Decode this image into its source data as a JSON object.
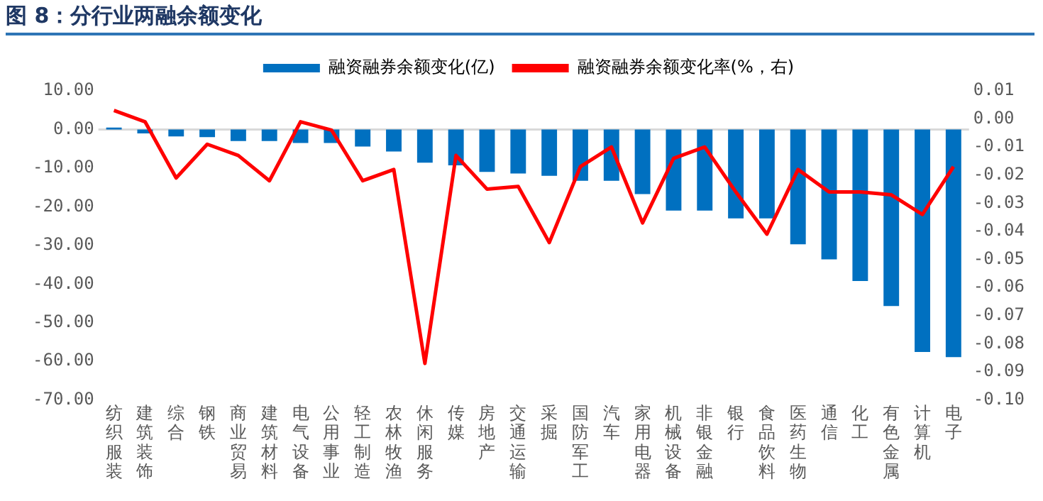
{
  "chart_data": {
    "type": "bar",
    "title": "图 8：分行业两融余额变化",
    "categories": [
      "纺织服装",
      "建筑装饰",
      "综合",
      "钢铁",
      "商业贸易",
      "建筑材料",
      "电气设备",
      "公用事业",
      "轻工制造",
      "农林牧渔",
      "休闲服务",
      "传媒",
      "房地产",
      "交通运输",
      "采掘",
      "国防军工",
      "汽车",
      "家用电器",
      "机械设备",
      "非银金融",
      "银行",
      "食品饮料",
      "医药生物",
      "通信",
      "化工",
      "有色金属",
      "计算机",
      "电子"
    ],
    "series": [
      {
        "name": "融资融券余额变化(亿)",
        "color": "#0070c0",
        "values": [
          0.5,
          -1.0,
          -1.8,
          -2.0,
          -3.0,
          -3.0,
          -3.5,
          -3.5,
          -4.4,
          -5.7,
          -8.6,
          -9.3,
          -11.0,
          -11.4,
          -12.0,
          -13.3,
          -13.3,
          -16.7,
          -21.0,
          -21.0,
          -23.0,
          -23.0,
          -29.7,
          -33.6,
          -39.2,
          -45.7,
          -57.6,
          -58.9
        ]
      },
      {
        "name": "融资融券余额变化率(%，右)",
        "type": "line",
        "axis": "y2",
        "color": "#ff0000",
        "values": [
          0.003,
          -0.001,
          -0.021,
          -0.009,
          -0.013,
          -0.022,
          -0.001,
          -0.004,
          -0.022,
          -0.018,
          -0.087,
          -0.013,
          -0.025,
          -0.024,
          -0.044,
          -0.017,
          -0.01,
          -0.037,
          -0.014,
          -0.01,
          -0.026,
          -0.041,
          -0.018,
          -0.026,
          -0.026,
          -0.027,
          -0.034,
          -0.017
        ]
      }
    ],
    "ylim": [
      -70,
      10
    ],
    "yticks": [
      {
        "value": 10,
        "label": "10.00"
      },
      {
        "value": 0,
        "label": "0.00"
      },
      {
        "value": -10,
        "label": "-10.00"
      },
      {
        "value": -20,
        "label": "-20.00"
      },
      {
        "value": -30,
        "label": "-30.00"
      },
      {
        "value": -40,
        "label": "-40.00"
      },
      {
        "value": -50,
        "label": "-50.00"
      },
      {
        "value": -60,
        "label": "-60.00"
      },
      {
        "value": -70,
        "label": "-70.00"
      }
    ],
    "y2lim": [
      -0.1,
      0.01
    ],
    "y2ticks": [
      {
        "value": 0.01,
        "label": "0.01"
      },
      {
        "value": 0,
        "label": "0.00"
      },
      {
        "value": -0.01,
        "label": "-0.01"
      },
      {
        "value": -0.02,
        "label": "-0.02"
      },
      {
        "value": -0.03,
        "label": "-0.03"
      },
      {
        "value": -0.04,
        "label": "-0.04"
      },
      {
        "value": -0.05,
        "label": "-0.05"
      },
      {
        "value": -0.06,
        "label": "-0.06"
      },
      {
        "value": -0.07,
        "label": "-0.07"
      },
      {
        "value": -0.08,
        "label": "-0.08"
      },
      {
        "value": -0.09,
        "label": "-0.09"
      },
      {
        "value": -0.1,
        "label": "-0.10"
      }
    ],
    "ref_lines": [
      {
        "axis": "y",
        "value": 0,
        "color": "#d9d9d9"
      }
    ],
    "grid": false,
    "legend": "top",
    "marker": "none",
    "line_style": "solid"
  }
}
